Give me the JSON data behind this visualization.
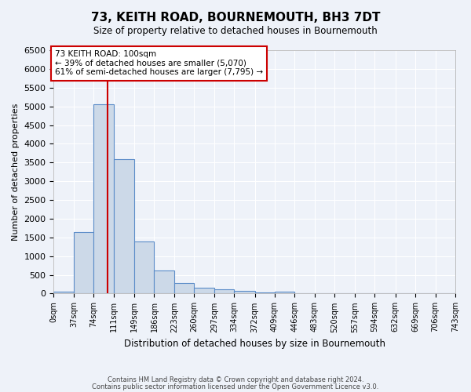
{
  "title": "73, KEITH ROAD, BOURNEMOUTH, BH3 7DT",
  "subtitle": "Size of property relative to detached houses in Bournemouth",
  "xlabel": "Distribution of detached houses by size in Bournemouth",
  "ylabel": "Number of detached properties",
  "bin_edges": [
    0,
    37,
    74,
    111,
    149,
    186,
    223,
    260,
    297,
    334,
    372,
    409,
    446,
    483,
    520,
    557,
    594,
    632,
    669,
    706,
    743
  ],
  "bar_heights": [
    50,
    1650,
    5060,
    3580,
    1390,
    615,
    290,
    150,
    115,
    75,
    40,
    45,
    0,
    0,
    0,
    0,
    0,
    0,
    0,
    0
  ],
  "bar_color": "#ccd9e8",
  "bar_edgecolor": "#5b8cc8",
  "property_line_x": 100,
  "property_line_color": "#cc0000",
  "ylim": [
    0,
    6500
  ],
  "yticks": [
    0,
    500,
    1000,
    1500,
    2000,
    2500,
    3000,
    3500,
    4000,
    4500,
    5000,
    5500,
    6000,
    6500
  ],
  "annotation_title": "73 KEITH ROAD: 100sqm",
  "annotation_line1": "← 39% of detached houses are smaller (5,070)",
  "annotation_line2": "61% of semi-detached houses are larger (7,795) →",
  "annotation_box_color": "#ffffff",
  "annotation_box_edgecolor": "#cc0000",
  "footer_line1": "Contains HM Land Registry data © Crown copyright and database right 2024.",
  "footer_line2": "Contains public sector information licensed under the Open Government Licence v3.0.",
  "background_color": "#eef2f9",
  "plot_bg_color": "#eef2f9"
}
